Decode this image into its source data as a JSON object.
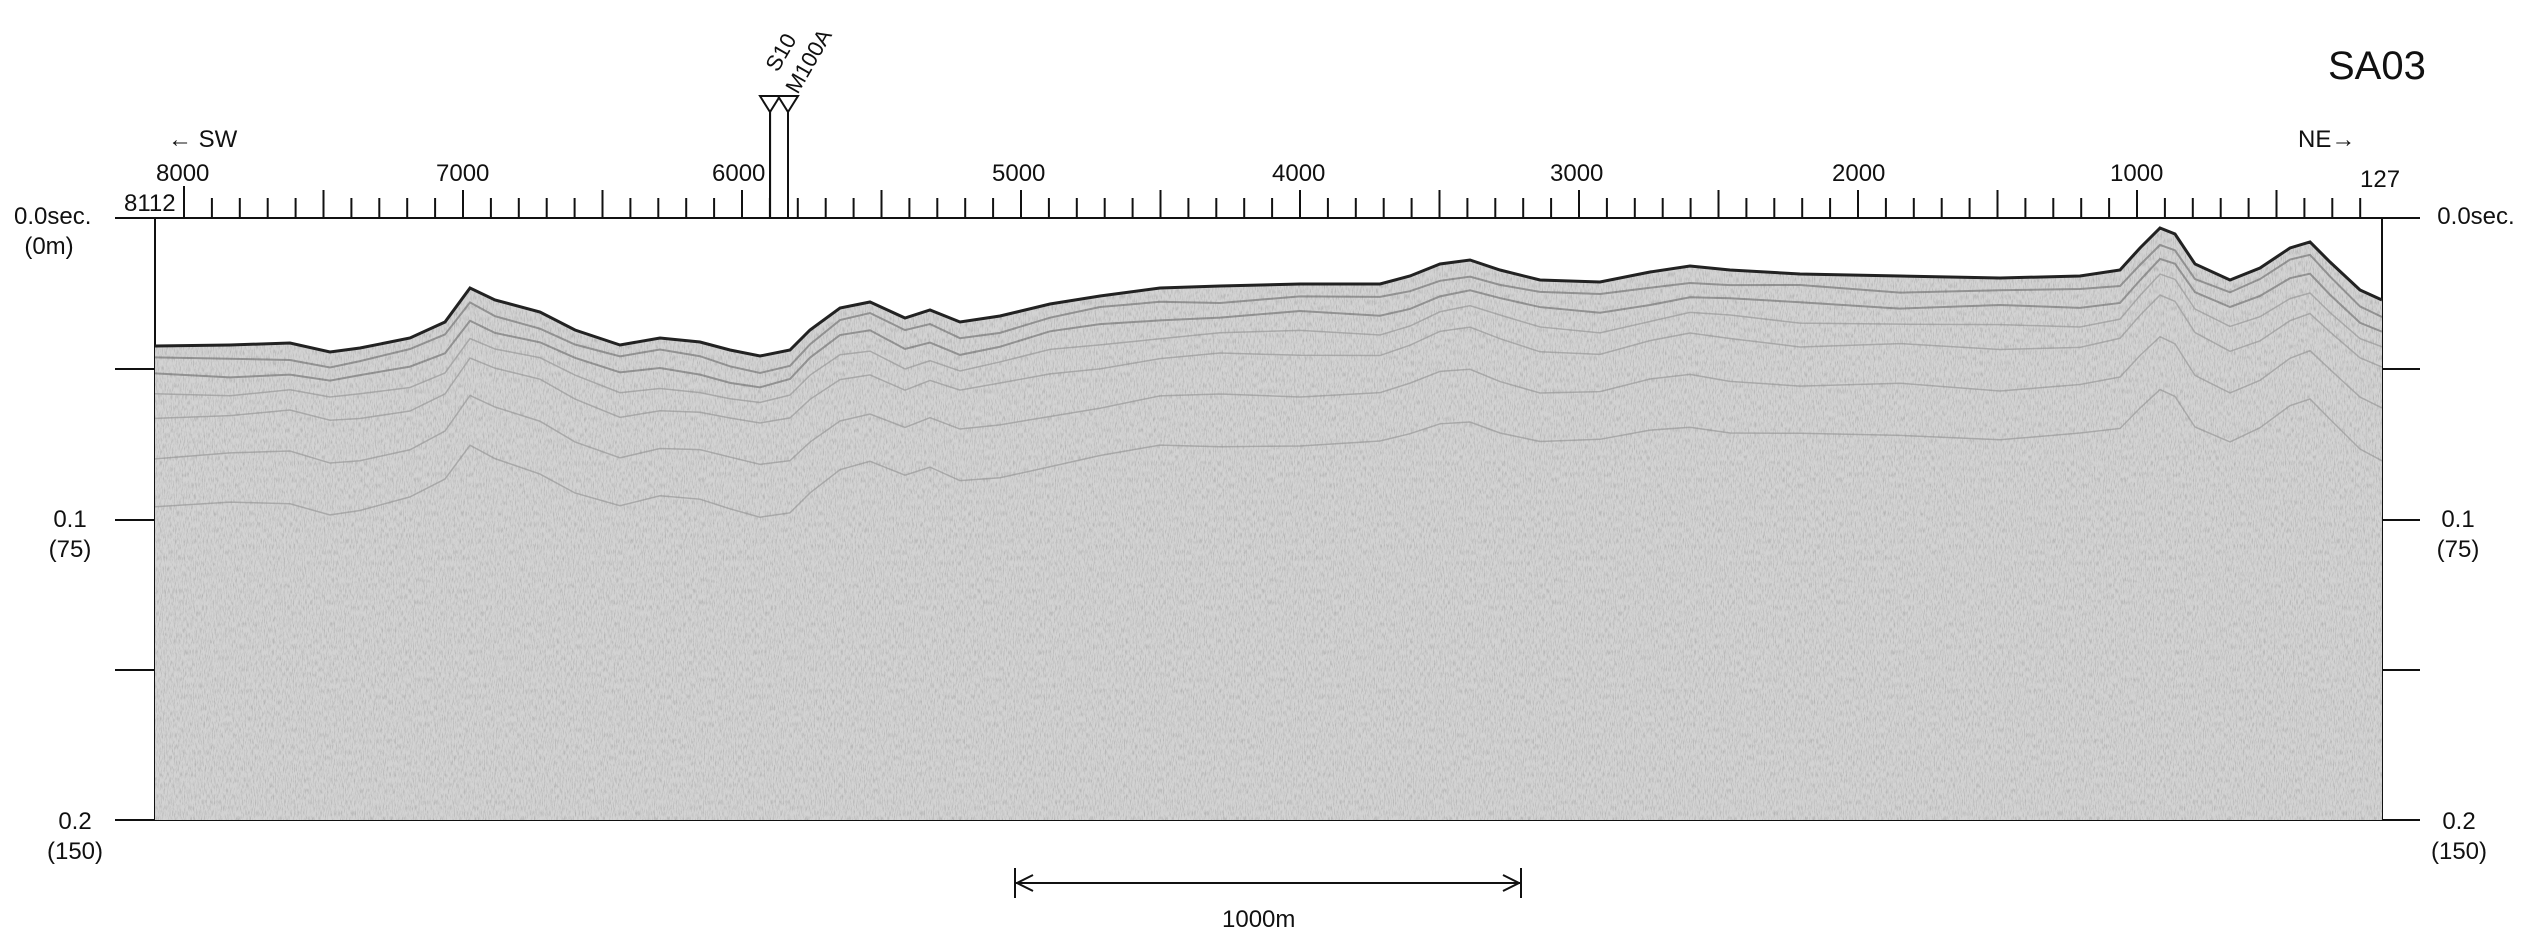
{
  "profile_title": "SA03",
  "direction": {
    "left": "← SW",
    "right": "NE→"
  },
  "trace_axis": {
    "start": "8112",
    "end": "127",
    "labels": [
      "8000",
      "7000",
      "6000",
      "5000",
      "4000",
      "3000",
      "2000",
      "1000"
    ]
  },
  "markers": [
    "S10",
    "M100A"
  ],
  "time_axis": {
    "left": [
      {
        "time": "0.0sec.",
        "depth": "(0m)"
      },
      {
        "time": "0.1",
        "depth": "(75)"
      },
      {
        "time": "0.2",
        "depth": "(150)"
      }
    ],
    "right": [
      {
        "time": "0.0sec.",
        "depth": ""
      },
      {
        "time": "0.1",
        "depth": "(75)"
      },
      {
        "time": "0.2",
        "depth": "(150)"
      }
    ]
  },
  "scale_bar": {
    "label": "1000m"
  },
  "colors": {
    "ink": "#111111",
    "background": "#ffffff",
    "noise": "#9a9a9a"
  }
}
